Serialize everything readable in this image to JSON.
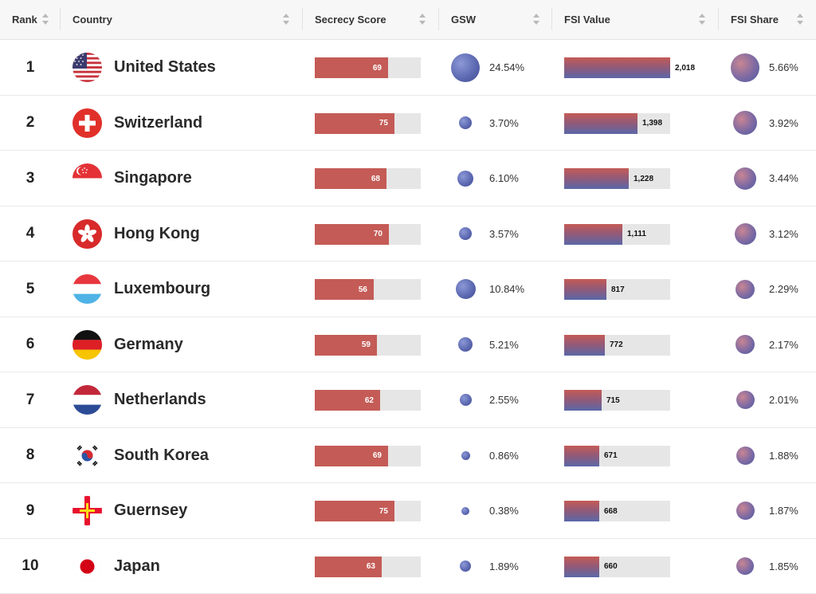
{
  "header": {
    "rank": "Rank",
    "country": "Country",
    "secrecy_score": "Secrecy Score",
    "gsw": "GSW",
    "fsi_value": "FSI Value",
    "fsi_share": "FSI Share"
  },
  "rows": [
    {
      "rank": "1",
      "country": "United States",
      "flag": "us",
      "secrecy": "69",
      "secrecy_frac": 0.69,
      "gsw": "24.54%",
      "gsw_frac": 1.0,
      "fsi": "2,018",
      "fsi_frac": 1.0,
      "share": "5.66%",
      "share_frac": 1.0
    },
    {
      "rank": "2",
      "country": "Switzerland",
      "flag": "ch",
      "secrecy": "75",
      "secrecy_frac": 0.75,
      "gsw": "3.70%",
      "gsw_frac": 0.2,
      "fsi": "1,398",
      "fsi_frac": 0.69,
      "share": "3.92%",
      "share_frac": 0.69
    },
    {
      "rank": "3",
      "country": "Singapore",
      "flag": "sg",
      "secrecy": "68",
      "secrecy_frac": 0.68,
      "gsw": "6.10%",
      "gsw_frac": 0.3,
      "fsi": "1,228",
      "fsi_frac": 0.61,
      "share": "3.44%",
      "share_frac": 0.61
    },
    {
      "rank": "4",
      "country": "Hong Kong",
      "flag": "hk",
      "secrecy": "70",
      "secrecy_frac": 0.7,
      "gsw": "3.57%",
      "gsw_frac": 0.2,
      "fsi": "1,111",
      "fsi_frac": 0.55,
      "share": "3.12%",
      "share_frac": 0.55
    },
    {
      "rank": "5",
      "country": "Luxembourg",
      "flag": "lu",
      "secrecy": "56",
      "secrecy_frac": 0.56,
      "gsw": "10.84%",
      "gsw_frac": 0.5,
      "fsi": "817",
      "fsi_frac": 0.4,
      "share": "2.29%",
      "share_frac": 0.45
    },
    {
      "rank": "6",
      "country": "Germany",
      "flag": "de",
      "secrecy": "59",
      "secrecy_frac": 0.59,
      "gsw": "5.21%",
      "gsw_frac": 0.25,
      "fsi": "772",
      "fsi_frac": 0.38,
      "share": "2.17%",
      "share_frac": 0.43
    },
    {
      "rank": "7",
      "country": "Netherlands",
      "flag": "nl",
      "secrecy": "62",
      "secrecy_frac": 0.62,
      "gsw": "2.55%",
      "gsw_frac": 0.18,
      "fsi": "715",
      "fsi_frac": 0.35,
      "share": "2.01%",
      "share_frac": 0.42
    },
    {
      "rank": "8",
      "country": "South Korea",
      "flag": "kr",
      "secrecy": "69",
      "secrecy_frac": 0.69,
      "gsw": "0.86%",
      "gsw_frac": 0.1,
      "fsi": "671",
      "fsi_frac": 0.33,
      "share": "1.88%",
      "share_frac": 0.4
    },
    {
      "rank": "9",
      "country": "Guernsey",
      "flag": "gg",
      "secrecy": "75",
      "secrecy_frac": 0.75,
      "gsw": "0.38%",
      "gsw_frac": 0.07,
      "fsi": "668",
      "fsi_frac": 0.33,
      "share": "1.87%",
      "share_frac": 0.4
    },
    {
      "rank": "10",
      "country": "Japan",
      "flag": "jp",
      "secrecy": "63",
      "secrecy_frac": 0.63,
      "gsw": "1.89%",
      "gsw_frac": 0.15,
      "fsi": "660",
      "fsi_frac": 0.33,
      "share": "1.85%",
      "share_frac": 0.39
    }
  ],
  "colors": {
    "secrecy_bar": "#c45b56",
    "bar_track": "#e6e6e6",
    "globe": "#5d6ab2"
  }
}
